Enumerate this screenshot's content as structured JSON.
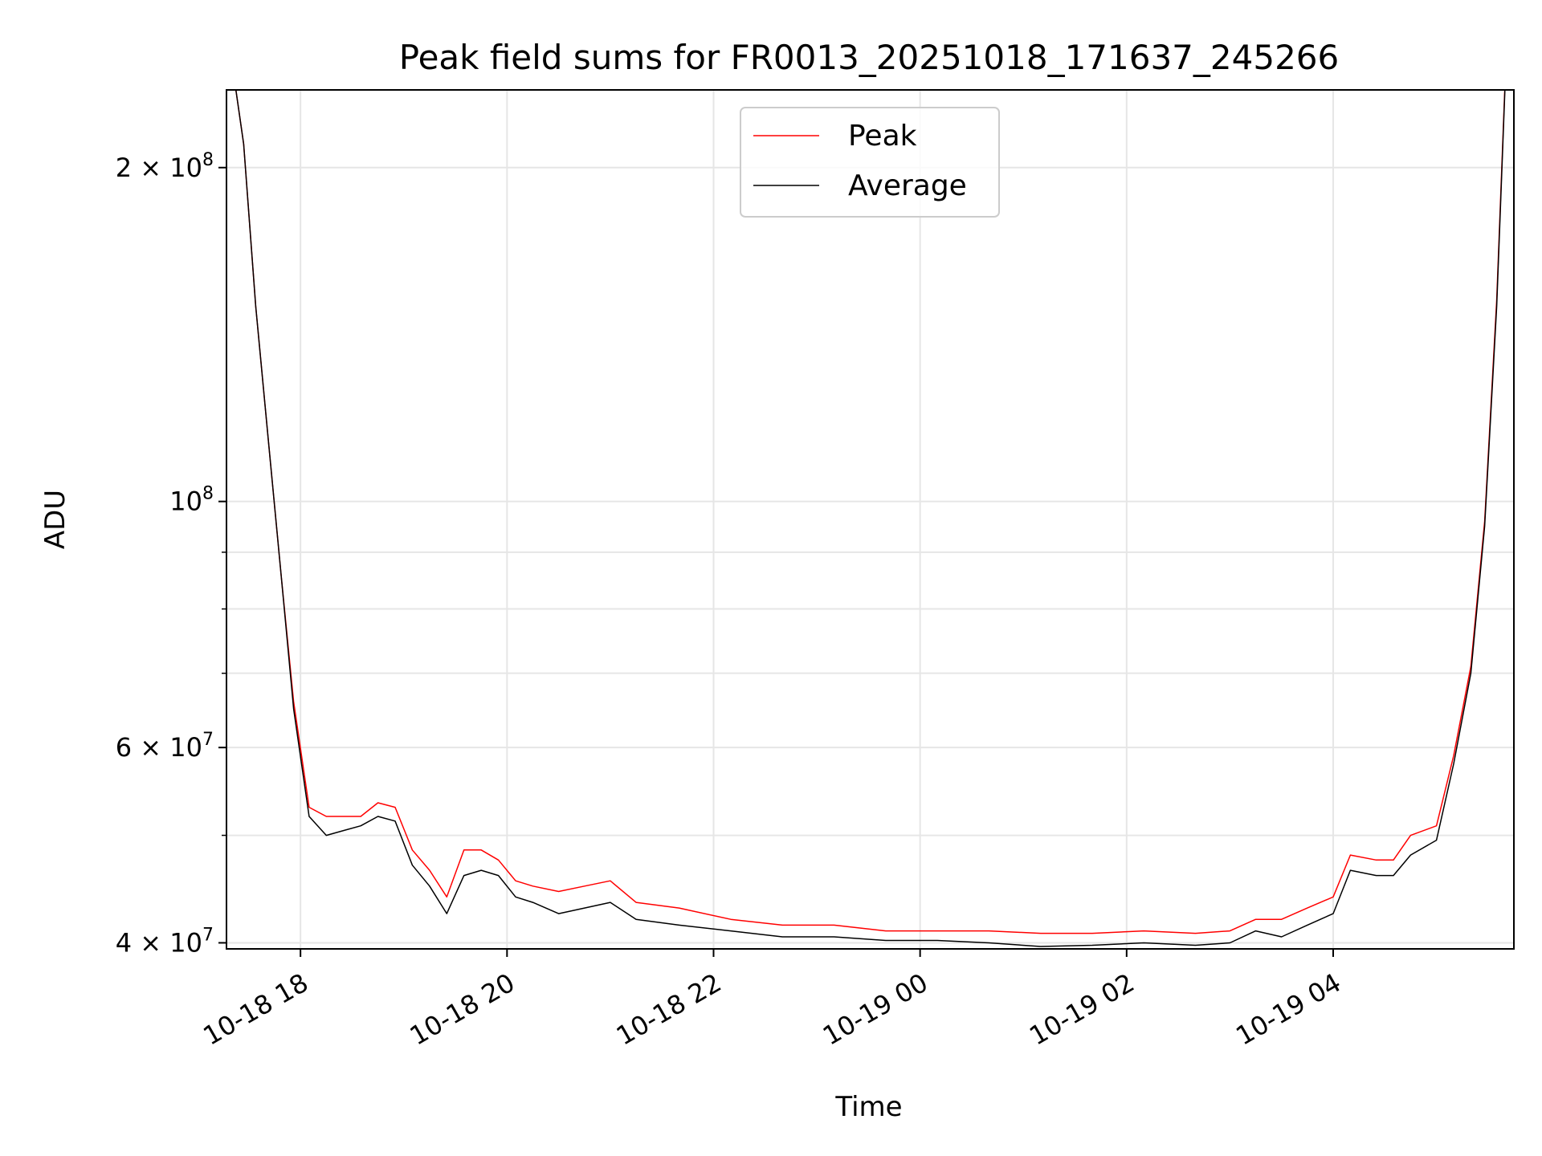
{
  "chart_data": {
    "type": "line",
    "title": "Peak field sums for FR0013_20251018_171637_245266",
    "xlabel": "Time",
    "ylabel": "ADU",
    "yscale": "log",
    "xlim": [
      "2025-10-18 17:17",
      "2025-10-19 05:45"
    ],
    "ylim": [
      39500000,
      235000000
    ],
    "grid": true,
    "legend_position": "top-center",
    "x_ticks": [
      "10-18 18",
      "10-18 20",
      "10-18 22",
      "10-19 00",
      "10-19 02",
      "10-19 04"
    ],
    "x_tick_times": [
      "2025-10-18 18:00",
      "2025-10-18 20:00",
      "2025-10-18 22:00",
      "2025-10-19 00:00",
      "2025-10-19 02:00",
      "2025-10-19 04:00"
    ],
    "y_major_ticks": [
      {
        "value": 40000000,
        "mantissa": "4",
        "exp": "7"
      },
      {
        "value": 60000000,
        "mantissa": "6",
        "exp": "7"
      },
      {
        "value": 100000000,
        "mantissa": "",
        "exp": "8"
      },
      {
        "value": 200000000,
        "mantissa": "2",
        "exp": "8"
      }
    ],
    "y_minor_gridlines": [
      50000000,
      70000000,
      80000000,
      90000000
    ],
    "series": [
      {
        "name": "Peak",
        "color": "#ff0000"
      },
      {
        "name": "Average",
        "color": "#000000"
      }
    ],
    "x": [
      "2025-10-18 17:20",
      "2025-10-18 17:27",
      "2025-10-18 17:34",
      "2025-10-18 17:41",
      "2025-10-18 17:49",
      "2025-10-18 17:56",
      "2025-10-18 18:05",
      "2025-10-18 18:15",
      "2025-10-18 18:25",
      "2025-10-18 18:35",
      "2025-10-18 18:45",
      "2025-10-18 18:55",
      "2025-10-18 19:05",
      "2025-10-18 19:15",
      "2025-10-18 19:25",
      "2025-10-18 19:35",
      "2025-10-18 19:45",
      "2025-10-18 19:55",
      "2025-10-18 20:05",
      "2025-10-18 20:15",
      "2025-10-18 20:30",
      "2025-10-18 20:45",
      "2025-10-18 21:00",
      "2025-10-18 21:15",
      "2025-10-18 21:40",
      "2025-10-18 22:10",
      "2025-10-18 22:40",
      "2025-10-18 23:10",
      "2025-10-18 23:40",
      "2025-10-19 00:10",
      "2025-10-19 00:40",
      "2025-10-19 01:10",
      "2025-10-19 01:40",
      "2025-10-19 02:10",
      "2025-10-19 02:40",
      "2025-10-19 03:00",
      "2025-10-19 03:15",
      "2025-10-19 03:30",
      "2025-10-19 03:45",
      "2025-10-19 04:00",
      "2025-10-19 04:10",
      "2025-10-19 04:25",
      "2025-10-19 04:35",
      "2025-10-19 04:45",
      "2025-10-19 05:00",
      "2025-10-19 05:10",
      "2025-10-19 05:20",
      "2025-10-19 05:28",
      "2025-10-19 05:35",
      "2025-10-19 05:40"
    ],
    "average_values": [
      250000000,
      210000000,
      150000000,
      115000000,
      85000000,
      65000000,
      52000000,
      50000000,
      50500000,
      51000000,
      52000000,
      51500000,
      47000000,
      45000000,
      42500000,
      46000000,
      46500000,
      46000000,
      44000000,
      43500000,
      42500000,
      43000000,
      43500000,
      42000000,
      41500000,
      41000000,
      40500000,
      40500000,
      40200000,
      40200000,
      40000000,
      39700000,
      39800000,
      40000000,
      39800000,
      40000000,
      41000000,
      40500000,
      41500000,
      42500000,
      46500000,
      46000000,
      46000000,
      48000000,
      49500000,
      58000000,
      70000000,
      95000000,
      150000000,
      240000000
    ],
    "peak_values": [
      250000000,
      210000000,
      150000000,
      115000000,
      85000000,
      66000000,
      53000000,
      52000000,
      52000000,
      52000000,
      53500000,
      53000000,
      48500000,
      46500000,
      44000000,
      48500000,
      48500000,
      47500000,
      45500000,
      45000000,
      44500000,
      45000000,
      45500000,
      43500000,
      43000000,
      42000000,
      41500000,
      41500000,
      41000000,
      41000000,
      41000000,
      40800000,
      40800000,
      41000000,
      40800000,
      41000000,
      42000000,
      42000000,
      43000000,
      44000000,
      48000000,
      47500000,
      47500000,
      50000000,
      51000000,
      59000000,
      71000000,
      96000000,
      152000000,
      242000000
    ]
  }
}
